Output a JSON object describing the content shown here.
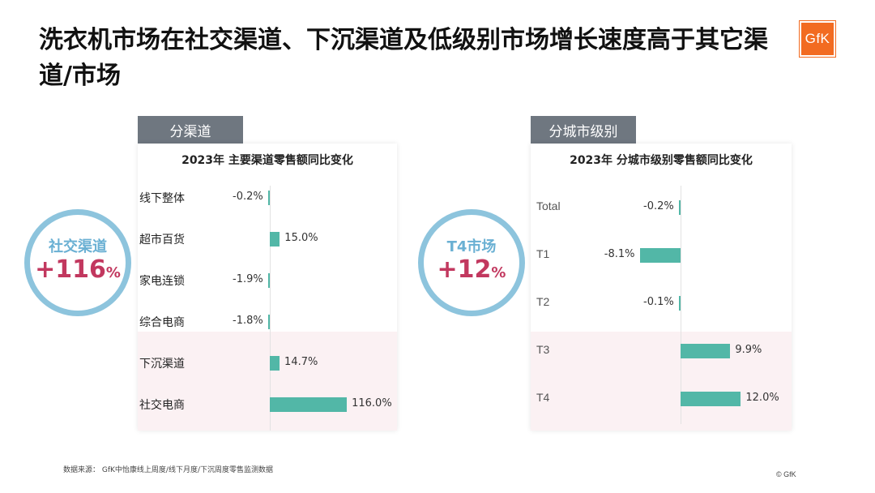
{
  "title": "洗衣机市场在社交渠道、下沉渠道及低级别市场增长速度高于其它渠道/市场",
  "logo_text": "GfK",
  "colors": {
    "bar": "#52b7a7",
    "tab": "#6f7780",
    "circle_border": "#8dc4dd",
    "highlight_value": "#c2385f",
    "highlight_band": "#fbf1f3"
  },
  "left": {
    "tab_label": "分渠道",
    "circle": {
      "label": "社交渠道",
      "value": "+116",
      "unit": "%"
    }
  },
  "right": {
    "tab_label": "分城市级别",
    "circle": {
      "label": "T4市场",
      "value": "+12",
      "unit": "%"
    }
  },
  "chart_data": [
    {
      "type": "bar",
      "orientation": "horizontal",
      "title": "2023年 主要渠道零售额同比变化",
      "categories": [
        "线下整体",
        "超市百货",
        "家电连锁",
        "综合电商",
        "下沉渠道",
        "社交电商"
      ],
      "values": [
        -0.2,
        15.0,
        -1.9,
        -1.8,
        14.7,
        116.0
      ],
      "labels": [
        "-0.2%",
        "15.0%",
        "-1.9%",
        "-1.8%",
        "14.7%",
        "116.0%"
      ],
      "highlighted": [
        "下沉渠道",
        "社交电商"
      ],
      "xlim": [
        -20,
        130
      ]
    },
    {
      "type": "bar",
      "orientation": "horizontal",
      "title": "2023年 分城市级别零售额同比变化",
      "categories": [
        "Total",
        "T1",
        "T2",
        "T3",
        "T4"
      ],
      "values": [
        -0.2,
        -8.1,
        -0.1,
        9.9,
        12.0
      ],
      "labels": [
        "-0.2%",
        "-8.1%",
        "-0.1%",
        "9.9%",
        "12.0%"
      ],
      "highlighted": [
        "T3",
        "T4"
      ],
      "xlim": [
        -20,
        25
      ]
    }
  ],
  "footnote": "数据来源： GfK中怡康线上周度/线下月度/下沉周度零售监测数据",
  "copyright": "© GfK"
}
